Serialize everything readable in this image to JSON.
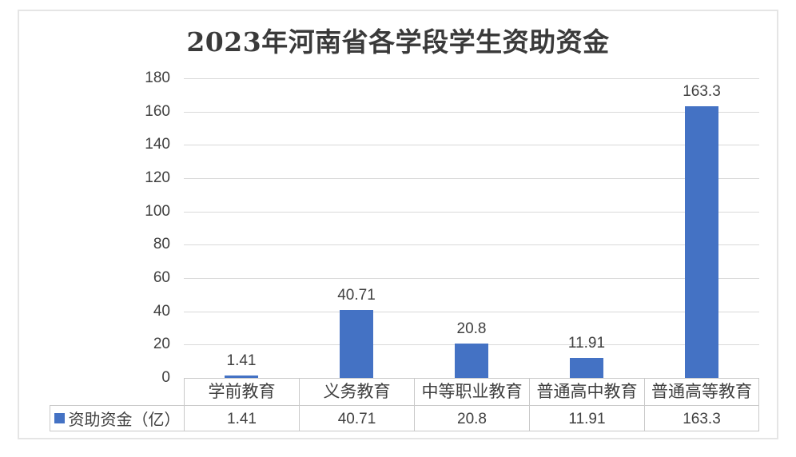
{
  "chart_data": {
    "type": "bar",
    "title": "2023年河南省各学段学生资助资金",
    "categories": [
      "学前教育",
      "义务教育",
      "中等职业教育",
      "普通高中教育",
      "普通高等教育"
    ],
    "series": [
      {
        "name": "资助资金（亿）",
        "values": [
          1.41,
          40.71,
          20.8,
          11.91,
          163.3
        ],
        "labels": [
          "1.41",
          "40.71",
          "20.8",
          "11.91",
          "163.3"
        ]
      }
    ],
    "ylim": [
      0,
      180
    ],
    "ytick_step": 20,
    "yticks": [
      "180",
      "160",
      "140",
      "120",
      "100",
      "80",
      "60",
      "40",
      "20",
      "0"
    ],
    "grid": true,
    "legend_position": "bottom-table-left",
    "icons": {
      "legend_marker": "filled-square"
    },
    "colors": {
      "bar": "#4472C4",
      "gridline": "#D9D9D9",
      "table_border": "#C9C9C9",
      "text": "#404040",
      "title": "#3A3A3A",
      "frame": "#E5E5E5",
      "background": "#FFFFFF"
    }
  }
}
